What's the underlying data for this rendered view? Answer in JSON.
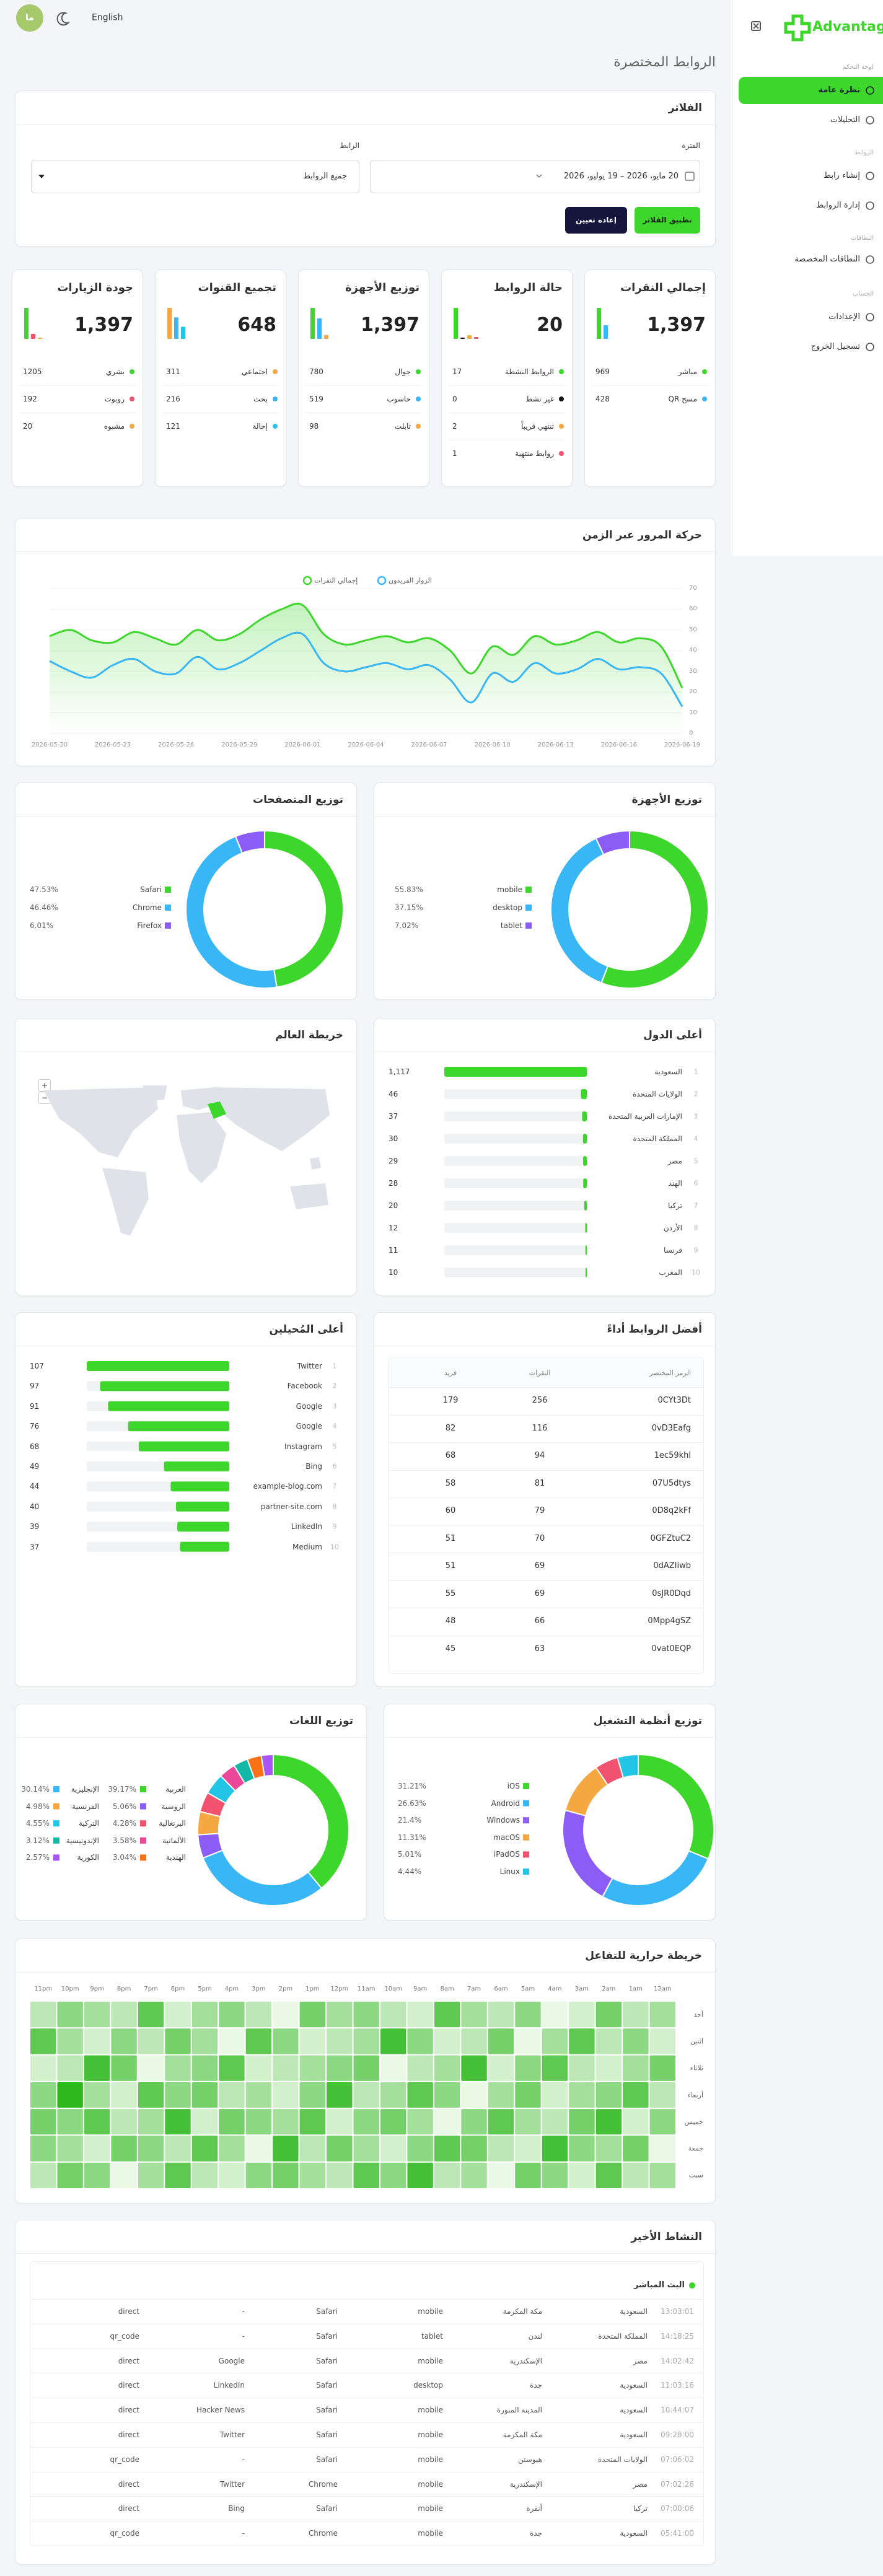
{
  "topbar": {
    "avatar": "ما",
    "language": "English"
  },
  "sidebar": {
    "logo": "Advantage",
    "sections": [
      {
        "title": "لوحة التحكم",
        "items": [
          "نظرة عامة",
          "التحليلات"
        ]
      },
      {
        "title": "الروابط",
        "items": [
          "إنشاء رابط",
          "إدارة الروابط"
        ]
      },
      {
        "title": "النطاقات",
        "items": [
          "النطاقات المخصصة"
        ]
      },
      {
        "title": "الحساب",
        "items": [
          "الإعدادات",
          "تسجيل الخروج"
        ]
      }
    ]
  },
  "page_title": "الروابط المختصرة",
  "filters": {
    "title": "الفلاتر",
    "period_label": "الفترة",
    "period_value": "20 مايو، 2026 – 19 يوليو، 2026",
    "link_label": "الرابط",
    "link_value": "جميع الروابط",
    "apply": "تطبيق الفلاتر",
    "reset": "إعادة تعيين"
  },
  "stats": [
    {
      "title": "إجمالي النقرات",
      "total": "1,397",
      "items": [
        {
          "label": "مباشر",
          "value": 969,
          "color": "#3dd62a"
        },
        {
          "label": "مسح QR",
          "value": 428,
          "color": "#38b6f5"
        }
      ]
    },
    {
      "title": "حالة الروابط",
      "total": "20",
      "items": [
        {
          "label": "الروابط النشطة",
          "value": 17,
          "color": "#3dd62a"
        },
        {
          "label": "غير نشط",
          "value": 0,
          "color": "#111111"
        },
        {
          "label": "تنتهي قريباً",
          "value": 2,
          "color": "#f5a742"
        },
        {
          "label": "روابط منتهية",
          "value": 1,
          "color": "#f1526d"
        }
      ]
    },
    {
      "title": "توزيع الأجهزة",
      "total": "1,397",
      "items": [
        {
          "label": "جوال",
          "value": 780,
          "color": "#3dd62a"
        },
        {
          "label": "حاسوب",
          "value": 519,
          "color": "#38b6f5"
        },
        {
          "label": "تابلت",
          "value": 98,
          "color": "#f5a742"
        }
      ]
    },
    {
      "title": "تجميع القنوات",
      "total": "648",
      "items": [
        {
          "label": "اجتماعي",
          "value": 311,
          "color": "#f5a742"
        },
        {
          "label": "بحث",
          "value": 216,
          "color": "#38b6f5"
        },
        {
          "label": "إحالة",
          "value": 121,
          "color": "#22c5e5"
        }
      ]
    },
    {
      "title": "جودة الزيارات",
      "total": "1,397",
      "items": [
        {
          "label": "بشري",
          "value": 1205,
          "color": "#3dd62a"
        },
        {
          "label": "روبوت",
          "value": 192,
          "color": "#f1526d"
        },
        {
          "label": "مشبوه",
          "value": 20,
          "color": "#f5a742"
        }
      ]
    }
  ],
  "traffic": {
    "type": "line",
    "title": "حركة المرور عبر الزمن",
    "x": [
      "2026-05-20",
      null,
      null,
      "2026-05-23",
      null,
      null,
      "2026-05-26",
      null,
      null,
      "2026-05-29",
      null,
      null,
      "2026-06-01",
      null,
      null,
      "2026-06-04",
      null,
      null,
      "2026-06-07",
      null,
      null,
      "2026-06-10",
      null,
      null,
      "2026-06-13",
      null,
      null,
      "2026-06-16",
      null,
      null,
      "2026-06-19"
    ],
    "series": [
      {
        "name": "إجمالي النقرات",
        "color": "#3dd62a",
        "values": [
          47,
          50,
          45,
          44,
          49,
          46,
          43,
          50,
          45,
          48,
          55,
          60,
          62,
          48,
          43,
          45,
          47,
          44,
          46,
          40,
          29,
          42,
          38,
          47,
          43,
          45,
          49,
          44,
          46,
          42,
          22
        ]
      },
      {
        "name": "الزوار الفريدون",
        "color": "#38b6f5",
        "values": [
          35,
          30,
          27,
          33,
          36,
          30,
          29,
          37,
          31,
          34,
          40,
          46,
          48,
          34,
          30,
          32,
          34,
          31,
          33,
          26,
          15,
          29,
          25,
          34,
          29,
          31,
          36,
          31,
          32,
          29,
          13
        ]
      }
    ],
    "ylim": [
      0,
      70
    ],
    "yticks": [
      0,
      10,
      20,
      30,
      40,
      50,
      60,
      70
    ],
    "grid": true
  },
  "devices": {
    "type": "donut",
    "title": "توزيع الأجهزة",
    "categories": [
      "mobile",
      "desktop",
      "tablet"
    ],
    "values": [
      55.83,
      37.15,
      7.02
    ],
    "value_labels": [
      "55.83%",
      "37.15%",
      "7.02%"
    ],
    "colors": [
      "#3dd62a",
      "#38b6f5",
      "#8b5cf6"
    ]
  },
  "browsers": {
    "type": "donut",
    "title": "توزيع المتصفحات",
    "categories": [
      "Safari",
      "Chrome",
      "Firefox"
    ],
    "values": [
      47.53,
      46.46,
      6.01
    ],
    "value_labels": [
      "47.53%",
      "46.46%",
      "6.01%"
    ],
    "colors": [
      "#3dd62a",
      "#38b6f5",
      "#8b5cf6"
    ]
  },
  "countries": {
    "type": "bar",
    "title": "أعلى الدول",
    "ranks": [
      1,
      2,
      3,
      4,
      5,
      6,
      7,
      8,
      9,
      10
    ],
    "categories": [
      "السعودية",
      "الولايات المتحدة",
      "الإمارات العربية المتحدة",
      "المملكة المتحدة",
      "مصر",
      "الهند",
      "تركيا",
      "الأردن",
      "فرنسا",
      "المغرب"
    ],
    "values": [
      1117,
      46,
      37,
      30,
      29,
      28,
      20,
      12,
      11,
      10
    ],
    "value_labels": [
      "1,117",
      "46",
      "37",
      "30",
      "29",
      "28",
      "20",
      "12",
      "11",
      "10"
    ],
    "color": "#3dd62a"
  },
  "world_map": {
    "title": "خريطة العالم",
    "zoom_in": "+",
    "zoom_out": "−"
  },
  "top_links": {
    "title": "أفضل الروابط أداءً",
    "columns": [
      "الرمز المختصر",
      "النقرات",
      "فريد"
    ],
    "rows": [
      [
        "0CYt3Dt",
        256,
        179
      ],
      [
        "0vD3Eafg",
        116,
        82
      ],
      [
        "1ec59khl",
        94,
        68
      ],
      [
        "07U5dtys",
        81,
        58
      ],
      [
        "0D8q2kFf",
        79,
        60
      ],
      [
        "0GFZtuC2",
        70,
        51
      ],
      [
        "0dAZIiwb",
        69,
        51
      ],
      [
        "0sJR0Dqd",
        69,
        55
      ],
      [
        "0Mpp4gSZ",
        66,
        48
      ],
      [
        "0vat0EQP",
        63,
        45
      ]
    ]
  },
  "referrers": {
    "type": "bar",
    "title": "أعلى المُحيلين",
    "ranks": [
      1,
      2,
      3,
      4,
      5,
      6,
      7,
      8,
      9,
      10
    ],
    "categories": [
      "Twitter",
      "Facebook",
      "Google",
      "Google",
      "Instagram",
      "Bing",
      "example-blog.com",
      "partner-site.com",
      "LinkedIn",
      "Medium"
    ],
    "values": [
      107,
      97,
      91,
      76,
      68,
      49,
      44,
      40,
      39,
      37
    ],
    "color": "#3dd62a"
  },
  "os": {
    "type": "donut",
    "title": "توزيع أنظمة التشغيل",
    "categories": [
      "iOS",
      "Android",
      "Windows",
      "macOS",
      "iPadOS",
      "Linux"
    ],
    "values": [
      31.21,
      26.63,
      21.4,
      11.31,
      5.01,
      4.44
    ],
    "value_labels": [
      "31.21%",
      "26.63%",
      "21.4%",
      "11.31%",
      "5.01%",
      "4.44%"
    ],
    "colors": [
      "#3dd62a",
      "#38b6f5",
      "#8b5cf6",
      "#f5a742",
      "#f1526d",
      "#22c5e5"
    ]
  },
  "languages": {
    "type": "donut",
    "title": "توزيع اللغات",
    "categories": [
      "العربية",
      "الإنجليزية",
      "الروسية",
      "الفرنسية",
      "البرتغالية",
      "التركية",
      "الألمانية",
      "الإندونيسية",
      "الهندية",
      "الكورية"
    ],
    "values": [
      39.17,
      30.14,
      5.06,
      4.98,
      4.28,
      4.55,
      3.58,
      3.12,
      3.04,
      2.57
    ],
    "value_labels": [
      "39.17%",
      "30.14%",
      "5.06%",
      "4.98%",
      "4.28%",
      "4.55%",
      "3.58%",
      "3.12%",
      "3.04%",
      "2.57%"
    ],
    "colors": [
      "#3dd62a",
      "#38b6f5",
      "#8b5cf6",
      "#f5a742",
      "#f1526d",
      "#22c5e5",
      "#ec4899",
      "#14b8a6",
      "#f97316",
      "#a855f7"
    ]
  },
  "heatmap": {
    "type": "heatmap",
    "title": "خريطة حرارية للتفاعل",
    "hours": [
      "12am",
      "1am",
      "2am",
      "3am",
      "4am",
      "5am",
      "6am",
      "7am",
      "8am",
      "9am",
      "10am",
      "11am",
      "12pm",
      "1pm",
      "2pm",
      "3pm",
      "4pm",
      "5pm",
      "6pm",
      "7pm",
      "8pm",
      "9pm",
      "10pm",
      "11pm"
    ],
    "days": [
      "أحد",
      "اثنين",
      "ثلاثاء",
      "أربعاء",
      "خميس",
      "جمعة",
      "سبت"
    ],
    "color": "#3dd62a",
    "values": [
      [
        9,
        8,
        11,
        7,
        6,
        10,
        8,
        9,
        12,
        7,
        8,
        10,
        9,
        11,
        6,
        8,
        10,
        9,
        7,
        12,
        8,
        9,
        10,
        8
      ],
      [
        7,
        10,
        8,
        12,
        9,
        6,
        11,
        8,
        7,
        10,
        13,
        9,
        8,
        7,
        10,
        12,
        6,
        9,
        11,
        8,
        10,
        7,
        9,
        12
      ],
      [
        11,
        9,
        7,
        8,
        12,
        10,
        7,
        13,
        9,
        8,
        6,
        11,
        10,
        9,
        8,
        7,
        12,
        10,
        9,
        6,
        11,
        13,
        8,
        7
      ],
      [
        8,
        12,
        10,
        9,
        7,
        11,
        9,
        6,
        10,
        12,
        9,
        8,
        13,
        10,
        7,
        9,
        8,
        11,
        10,
        12,
        7,
        9,
        14,
        10
      ],
      [
        10,
        7,
        13,
        11,
        8,
        9,
        12,
        10,
        6,
        9,
        11,
        10,
        7,
        12,
        9,
        10,
        11,
        7,
        13,
        9,
        8,
        12,
        10,
        11
      ],
      [
        6,
        11,
        9,
        10,
        13,
        7,
        8,
        11,
        12,
        10,
        7,
        9,
        11,
        8,
        13,
        6,
        9,
        12,
        8,
        10,
        11,
        7,
        9,
        10
      ],
      [
        9,
        8,
        12,
        7,
        10,
        11,
        6,
        9,
        8,
        13,
        10,
        12,
        8,
        9,
        11,
        10,
        7,
        8,
        12,
        9,
        6,
        10,
        11,
        8
      ]
    ]
  },
  "activity": {
    "title": "النشاط الأخير",
    "live": "البث المباشر",
    "rows": [
      [
        "13:03:01",
        "السعودية",
        "مكة المكرمة",
        "mobile",
        "Safari",
        "-",
        "direct"
      ],
      [
        "14:18:25",
        "المملكة المتحدة",
        "لندن",
        "tablet",
        "Safari",
        "-",
        "qr_code"
      ],
      [
        "14:02:42",
        "مصر",
        "الإسكندرية",
        "mobile",
        "Safari",
        "Google",
        "direct"
      ],
      [
        "11:03:16",
        "السعودية",
        "جدة",
        "desktop",
        "Safari",
        "LinkedIn",
        "direct"
      ],
      [
        "10:44:07",
        "السعودية",
        "المدينة المنورة",
        "mobile",
        "Safari",
        "Hacker News",
        "direct"
      ],
      [
        "09:28:00",
        "السعودية",
        "مكة المكرمة",
        "mobile",
        "Safari",
        "Twitter",
        "direct"
      ],
      [
        "07:06:02",
        "الولايات المتحدة",
        "هيوستن",
        "mobile",
        "Safari",
        "-",
        "qr_code"
      ],
      [
        "07:02:26",
        "مصر",
        "الإسكندرية",
        "mobile",
        "Chrome",
        "Twitter",
        "direct"
      ],
      [
        "07:00:06",
        "تركيا",
        "أنقرة",
        "mobile",
        "Safari",
        "Bing",
        "direct"
      ],
      [
        "05:41:00",
        "السعودية",
        "جدة",
        "mobile",
        "Chrome",
        "-",
        "qr_code"
      ]
    ]
  }
}
